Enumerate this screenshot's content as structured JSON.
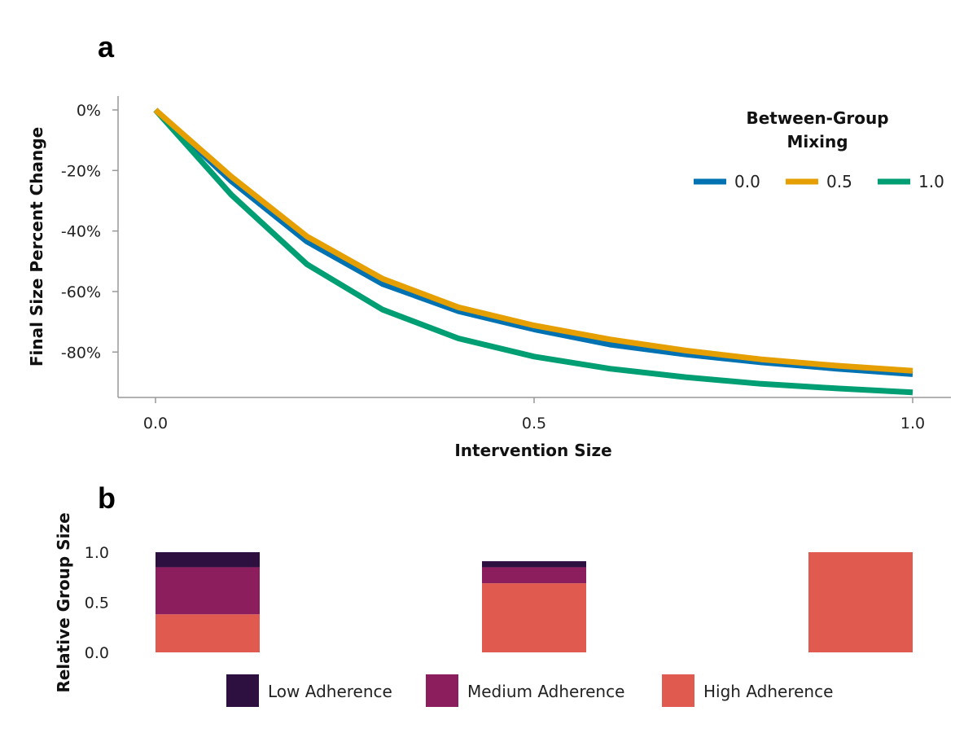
{
  "chart_data": [
    {
      "panel": "a",
      "type": "line",
      "xlabel": "Intervention Size",
      "ylabel": "Final Size Percent Change",
      "xlim": [
        0,
        1
      ],
      "ylim": [
        -95,
        0
      ],
      "xticks": [
        0.0,
        0.5,
        1.0
      ],
      "xtick_labels": [
        "0.0",
        "0.5",
        "1.0"
      ],
      "yticks": [
        0,
        -20,
        -40,
        -60,
        -80
      ],
      "ytick_labels": [
        "0%",
        "-20%",
        "-40%",
        "-60%",
        "-80%"
      ],
      "legend": {
        "title_line1": "Between-Group",
        "title_line2": "Mixing",
        "placement": "top-right"
      },
      "x": [
        0.0,
        0.1,
        0.2,
        0.3,
        0.4,
        0.5,
        0.6,
        0.7,
        0.8,
        0.9,
        1.0
      ],
      "series": [
        {
          "name": "0.0",
          "color": "#0072B2",
          "values": [
            0,
            -23.5,
            -43.5,
            -57.5,
            -66.5,
            -72.5,
            -77.5,
            -80.8,
            -83.4,
            -85.5,
            -87.3
          ]
        },
        {
          "name": "0.5",
          "color": "#E69F00",
          "values": [
            0,
            -22.0,
            -41.8,
            -55.8,
            -65.2,
            -71.2,
            -75.8,
            -79.5,
            -82.4,
            -84.5,
            -86.2
          ]
        },
        {
          "name": "1.0",
          "color": "#009E73",
          "values": [
            0,
            -28.0,
            -51.0,
            -66.0,
            -75.5,
            -81.5,
            -85.5,
            -88.3,
            -90.5,
            -92.0,
            -93.3
          ]
        }
      ]
    },
    {
      "panel": "b",
      "type": "bar",
      "stacked": true,
      "ylabel": "Relative Group Size",
      "ylim": [
        0,
        1
      ],
      "yticks": [
        0.0,
        0.5,
        1.0
      ],
      "ytick_labels": [
        "0.0",
        "0.5",
        "1.0"
      ],
      "legend_placement": "bottom",
      "bar_positions": [
        0.0,
        0.5,
        1.0
      ],
      "series": [
        {
          "name": "High Adherence",
          "color": "#E15A50",
          "values": [
            0.38,
            0.69,
            1.0
          ]
        },
        {
          "name": "Medium Adherence",
          "color": "#8D1E5E",
          "values": [
            0.47,
            0.16,
            0.0
          ]
        },
        {
          "name": "Low Adherence",
          "color": "#2D1040",
          "values": [
            0.15,
            0.06,
            0.0
          ]
        }
      ],
      "legend_order": [
        "Low Adherence",
        "Medium Adherence",
        "High Adherence"
      ]
    }
  ]
}
